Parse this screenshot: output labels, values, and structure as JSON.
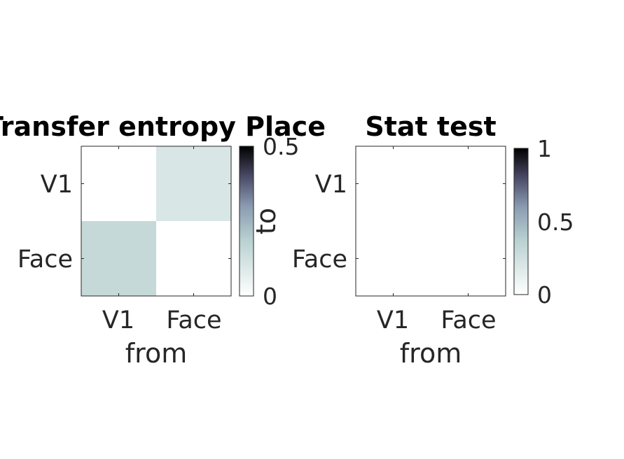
{
  "chart_data": [
    {
      "type": "heatmap",
      "title": "Transfer entropy Place",
      "xlabel": "from",
      "ylabel": "to",
      "x_categories": [
        "V1",
        "Face"
      ],
      "y_categories": [
        "V1",
        "Face"
      ],
      "z": [
        [
          0,
          0.1
        ],
        [
          0.15,
          0
        ]
      ],
      "colorbar": {
        "range": [
          0,
          0.5
        ],
        "ticks": [
          "0",
          "0.5"
        ],
        "label": ""
      },
      "colormap": "bone (reversed)"
    },
    {
      "type": "heatmap",
      "title": "Stat test",
      "xlabel": "from",
      "ylabel": "",
      "x_categories": [
        "V1",
        "Face"
      ],
      "y_categories": [
        "V1",
        "Face"
      ],
      "z": [
        [
          0,
          0
        ],
        [
          0,
          0
        ]
      ],
      "colorbar": {
        "range": [
          0,
          1
        ],
        "ticks": [
          "0",
          "0.5",
          "1"
        ],
        "label": ""
      },
      "colormap": "bone (reversed)"
    }
  ],
  "colors": {
    "colormap_stops": [
      "#ffffff",
      "#c0d8d8",
      "#8fa7b8",
      "#5a5a7a",
      "#000000"
    ],
    "axis_color": "#262626",
    "background": "#ffffff"
  }
}
